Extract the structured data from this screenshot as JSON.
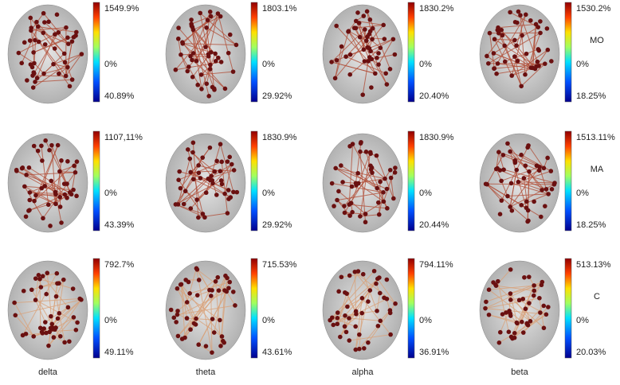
{
  "panels": [
    [
      {
        "max": "1549.9%",
        "zero": "0%",
        "min": "40.89%"
      },
      {
        "max": "1803.1%",
        "zero": "0%",
        "min": "29.92%"
      },
      {
        "max": "1830.2%",
        "zero": "0%",
        "min": "20.40%"
      },
      {
        "max": "1530.2%",
        "zero": "0%",
        "min": "18.25%"
      }
    ],
    [
      {
        "max": "1107,11%",
        "zero": "0%",
        "min": "43.39%"
      },
      {
        "max": "1830.9%",
        "zero": "0%",
        "min": "29.92%"
      },
      {
        "max": "1830.9%",
        "zero": "0%",
        "min": "20.44%"
      },
      {
        "max": "1513.11%",
        "zero": "0%",
        "min": "18.25%"
      }
    ],
    [
      {
        "max": "792.7%",
        "zero": "0%",
        "min": "49.11%"
      },
      {
        "max": "715.53%",
        "zero": "0%",
        "min": "43.61%"
      },
      {
        "max": "794.11%",
        "zero": "0%",
        "min": "36.91%"
      },
      {
        "max": "513.13%",
        "zero": "0%",
        "min": "20.03%"
      }
    ]
  ],
  "row_labels": [
    "MO",
    "MA",
    "C"
  ],
  "column_labels": [
    "delta",
    "theta",
    "alpha",
    "beta"
  ]
}
